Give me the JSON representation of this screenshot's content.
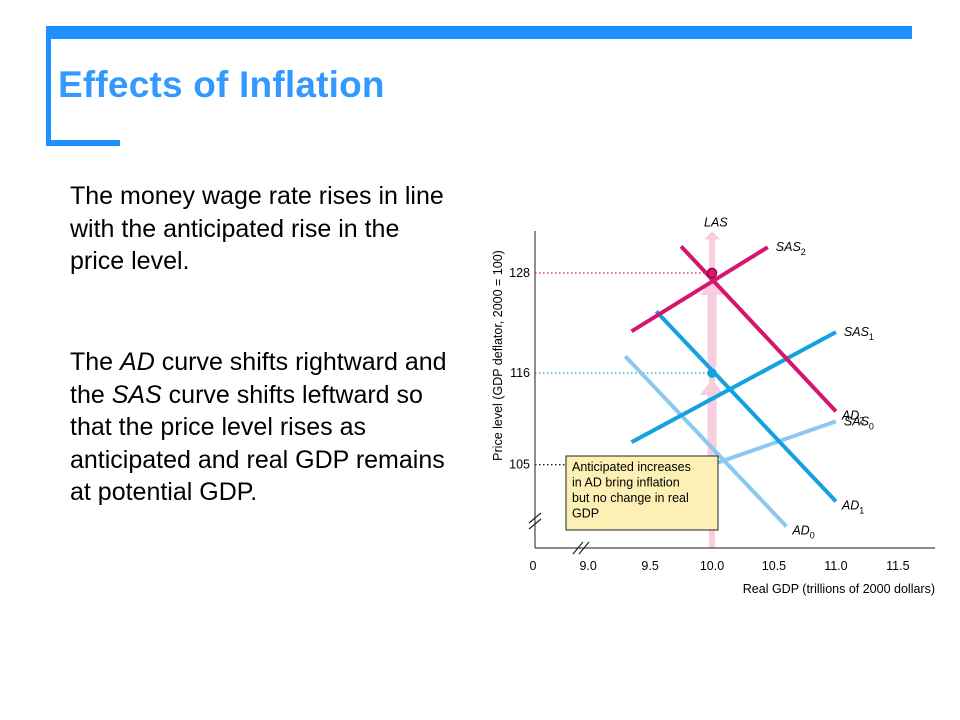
{
  "slide": {
    "title": "Effects of Inflation",
    "paragraphs": [
      [
        {
          "t": "The money wage rate rises in line with the anticipated rise in the price level.",
          "i": false
        }
      ],
      [
        {
          "t": "The ",
          "i": false
        },
        {
          "t": "AD",
          "i": true
        },
        {
          "t": " curve shifts rightward and the ",
          "i": false
        },
        {
          "t": "SAS",
          "i": true
        },
        {
          "t": " curve shifts leftward so that the price level rises as anticipated and real GDP remains at potential GDP.",
          "i": false
        }
      ]
    ]
  },
  "colors": {
    "accent_bar": "#1e90ff",
    "title": "#3399ff",
    "initial_curves": "#8cc8f0",
    "middle_curves": "#12a3de",
    "final_curves": "#d6166e",
    "las_arrow": "#f7cde0",
    "callout_fill": "#fdf0b5"
  },
  "chart_data": {
    "type": "line",
    "xlabel": "Real GDP (trillions of 2000 dollars)",
    "ylabel": "Price level (GDP deflator, 2000 = 100)",
    "x_origin_label": "0",
    "x_ticks": [
      "9.0",
      "9.5",
      "10.0",
      "10.5",
      "11.0",
      "11.5"
    ],
    "y_ticks": [
      "105",
      "116",
      "128"
    ],
    "axis_break": true,
    "xlim": [
      8.7,
      11.8
    ],
    "ylim": [
      95,
      134
    ],
    "series": [
      {
        "name": "LAS",
        "label": "LAS",
        "sub": "",
        "role": "las",
        "x": [
          10.0,
          10.0
        ],
        "y": [
          95,
          133
        ]
      },
      {
        "name": "SAS0",
        "label": "SAS",
        "sub": "0",
        "role": "initial",
        "x": [
          10.0,
          11.0
        ],
        "y": [
          105,
          110.2
        ]
      },
      {
        "name": "AD0",
        "label": "AD",
        "sub": "0",
        "role": "initial",
        "x": [
          9.3,
          10.6
        ],
        "y": [
          118,
          97.6
        ]
      },
      {
        "name": "SAS1",
        "label": "SAS",
        "sub": "1",
        "role": "middle",
        "x": [
          9.35,
          11.0
        ],
        "y": [
          107.7,
          120.9
        ]
      },
      {
        "name": "AD1",
        "label": "AD",
        "sub": "1",
        "role": "middle",
        "x": [
          9.55,
          11.0
        ],
        "y": [
          123.4,
          100.6
        ]
      },
      {
        "name": "SAS2",
        "label": "SAS",
        "sub": "2",
        "role": "final",
        "x": [
          9.35,
          10.45
        ],
        "y": [
          121.0,
          131.1
        ]
      },
      {
        "name": "AD2",
        "label": "AD",
        "sub": "2",
        "role": "final",
        "x": [
          9.75,
          11.0
        ],
        "y": [
          131.2,
          111.4
        ]
      }
    ],
    "equilibria": [
      {
        "x": 10.0,
        "y": 105,
        "role": "initial"
      },
      {
        "x": 10.0,
        "y": 116,
        "role": "middle"
      },
      {
        "x": 10.0,
        "y": 128,
        "role": "final"
      }
    ],
    "annotation": "Anticipated increases in AD bring inflation but no change in real GDP"
  }
}
